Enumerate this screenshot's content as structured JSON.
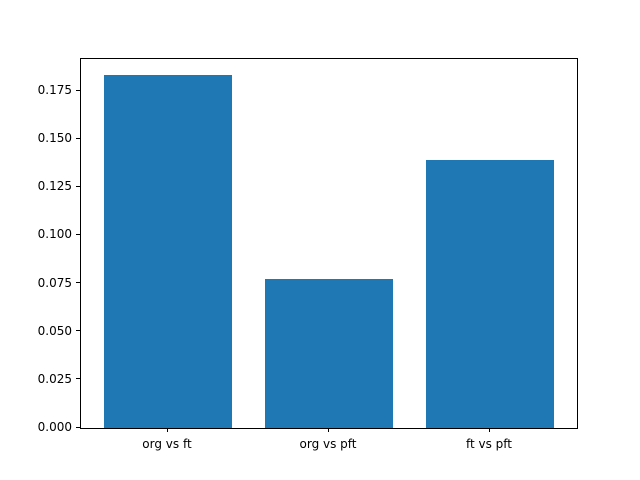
{
  "chart_data": {
    "type": "bar",
    "title": "",
    "xlabel": "",
    "ylabel": "",
    "categories": [
      "org vs ft",
      "org vs pft",
      "ft vs pft"
    ],
    "values": [
      0.1832,
      0.0775,
      0.1392
    ],
    "bar_color": "#1f77b4",
    "bar_width": 0.8,
    "xlim": [
      -0.54,
      2.54
    ],
    "ylim": [
      0,
      0.1916
    ],
    "ytick_values": [
      0.0,
      0.025,
      0.05,
      0.075,
      0.1,
      0.125,
      0.15,
      0.175
    ],
    "ytick_labels": [
      "0.000",
      "0.025",
      "0.050",
      "0.075",
      "0.100",
      "0.125",
      "0.150",
      "0.175"
    ],
    "grid": false,
    "legend": false
  }
}
